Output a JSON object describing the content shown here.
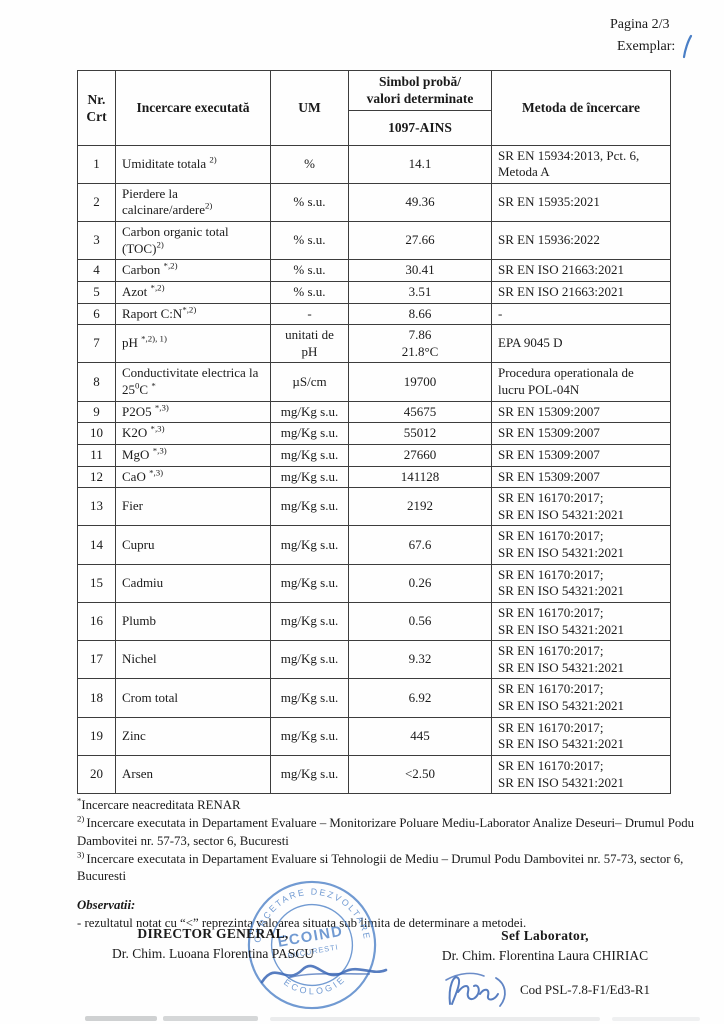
{
  "page": {
    "pagina": "Pagina 2/3",
    "exemplar_label": "Exemplar:",
    "exemplar_value": "1"
  },
  "table": {
    "headers": {
      "nr": "Nr.\nCrt",
      "test": "Incercare executată",
      "um": "UM",
      "symbol": "Simbol probă/\nvalori determinate",
      "sample_id": "1097-AINS",
      "method": "Metoda de încercare"
    },
    "rows": [
      {
        "nr": "1",
        "name": [
          {
            "t": "Umiditate totala "
          },
          {
            "t": "2)",
            "sup": true
          }
        ],
        "um": "%",
        "value": "14.1",
        "method": "SR EN 15934:2013, Pct. 6,\nMetoda A"
      },
      {
        "nr": "2",
        "name": [
          {
            "t": "Pierdere la calcinare/ardere"
          },
          {
            "t": "2)",
            "sup": true
          }
        ],
        "um": "% s.u.",
        "value": "49.36",
        "method": "SR EN 15935:2021"
      },
      {
        "nr": "3",
        "name": [
          {
            "t": "Carbon organic total (TOC)"
          },
          {
            "t": "2)",
            "sup": true
          }
        ],
        "um": "% s.u.",
        "value": "27.66",
        "method": "SR EN 15936:2022"
      },
      {
        "nr": "4",
        "name": [
          {
            "t": "Carbon "
          },
          {
            "t": "*,2)",
            "sup": true
          }
        ],
        "um": "% s.u.",
        "value": "30.41",
        "method": "SR EN ISO 21663:2021"
      },
      {
        "nr": "5",
        "name": [
          {
            "t": "Azot "
          },
          {
            "t": "*,2)",
            "sup": true
          }
        ],
        "um": "% s.u.",
        "value": "3.51",
        "method": "SR EN ISO 21663:2021"
      },
      {
        "nr": "6",
        "name": [
          {
            "t": "Raport C:N"
          },
          {
            "t": "*,2)",
            "sup": true
          }
        ],
        "um": "-",
        "value": "8.66",
        "method": "-"
      },
      {
        "nr": "7",
        "name": [
          {
            "t": "pH "
          },
          {
            "t": "*,2), 1)",
            "sup": true
          }
        ],
        "um": "unitati de pH",
        "value": "7.86\n21.8°C",
        "method": "EPA 9045 D"
      },
      {
        "nr": "8",
        "name": [
          {
            "t": "Conductivitate electrica la 25"
          },
          {
            "t": "0",
            "sup": true
          },
          {
            "t": "C "
          },
          {
            "t": "*",
            "sup": true
          }
        ],
        "um": "µS/cm",
        "value": "19700",
        "method": "Procedura operationala de\nlucru POL-04N"
      },
      {
        "nr": "9",
        "name": [
          {
            "t": "P2O5 "
          },
          {
            "t": "*,3)",
            "sup": true
          }
        ],
        "um": "mg/Kg s.u.",
        "value": "45675",
        "method": "SR EN 15309:2007"
      },
      {
        "nr": "10",
        "name": [
          {
            "t": "K2O "
          },
          {
            "t": "*,3)",
            "sup": true
          }
        ],
        "um": "mg/Kg s.u.",
        "value": "55012",
        "method": "SR EN 15309:2007"
      },
      {
        "nr": "11",
        "name": [
          {
            "t": "MgO "
          },
          {
            "t": "*,3)",
            "sup": true
          }
        ],
        "um": "mg/Kg s.u.",
        "value": "27660",
        "method": "SR EN 15309:2007"
      },
      {
        "nr": "12",
        "name": [
          {
            "t": "CaO "
          },
          {
            "t": "*,3)",
            "sup": true
          }
        ],
        "um": "mg/Kg s.u.",
        "value": "141128",
        "method": "SR EN 15309:2007"
      },
      {
        "nr": "13",
        "name": [
          {
            "t": "Fier"
          }
        ],
        "um": "mg/Kg s.u.",
        "value": "2192",
        "method": "SR EN 16170:2017;\nSR EN ISO 54321:2021"
      },
      {
        "nr": "14",
        "name": [
          {
            "t": "Cupru"
          }
        ],
        "um": "mg/Kg s.u.",
        "value": "67.6",
        "method": "SR EN 16170:2017;\nSR EN ISO 54321:2021"
      },
      {
        "nr": "15",
        "name": [
          {
            "t": "Cadmiu"
          }
        ],
        "um": "mg/Kg s.u.",
        "value": "0.26",
        "method": "SR EN 16170:2017;\nSR EN ISO 54321:2021"
      },
      {
        "nr": "16",
        "name": [
          {
            "t": "Plumb"
          }
        ],
        "um": "mg/Kg s.u.",
        "value": "0.56",
        "method": "SR EN 16170:2017;\nSR EN ISO 54321:2021"
      },
      {
        "nr": "17",
        "name": [
          {
            "t": "Nichel"
          }
        ],
        "um": "mg/Kg s.u.",
        "value": "9.32",
        "method": "SR EN 16170:2017;\nSR EN ISO 54321:2021"
      },
      {
        "nr": "18",
        "name": [
          {
            "t": "Crom total"
          }
        ],
        "um": "mg/Kg s.u.",
        "value": "6.92",
        "method": "SR EN 16170:2017;\nSR EN ISO 54321:2021"
      },
      {
        "nr": "19",
        "name": [
          {
            "t": "Zinc"
          }
        ],
        "um": "mg/Kg s.u.",
        "value": "445",
        "method": "SR EN 16170:2017;\nSR EN ISO 54321:2021"
      },
      {
        "nr": "20",
        "name": [
          {
            "t": "Arsen"
          }
        ],
        "um": "mg/Kg s.u.",
        "value": "<2.50",
        "method": "SR EN 16170:2017;\nSR EN ISO 54321:2021"
      }
    ]
  },
  "footnotes": [
    [
      {
        "t": "*",
        "sup": true
      },
      {
        "t": "Incercare neacreditata RENAR"
      }
    ],
    [
      {
        "t": "2) ",
        "sup": true
      },
      {
        "t": "Incercare executata in Departament Evaluare – Monitorizare Poluare Mediu-Laborator Analize Deseuri– Drumul Podu Dambovitei nr. 57-73, sector 6, Bucuresti"
      }
    ],
    [
      {
        "t": "3) ",
        "sup": true
      },
      {
        "t": "Incercare executata in Departament Evaluare  si Tehnologii de Mediu – Drumul Podu Dambovitei nr. 57-73, sector 6, Bucuresti"
      }
    ]
  ],
  "observations": {
    "title": "Observatii:",
    "text": "- rezultatul notat cu “<” reprezinta valoarea situata  sub limita de determinare  a metodei."
  },
  "signatures": {
    "left_role": "DIRECTOR GENERAL,",
    "left_name": "Dr. Chim. Luoana Florentina PASCU",
    "right_role": "Sef  Laborator,",
    "right_name": "Dr. Chim. Florentina Laura CHIRIAC",
    "doc_code": "Cod PSL-7.8-F1/Ed3-R1"
  },
  "stamp": {
    "ring_top": "CERCETARE DEZVOLTARE",
    "ring_bottom": "ECOLOGIE",
    "center_line1": "ECOIND",
    "center_line2": "BUCURESTI",
    "ink_color": "#4a7fc6"
  }
}
